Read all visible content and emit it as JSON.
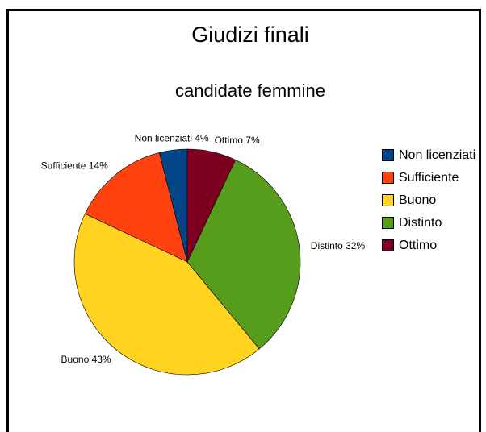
{
  "chart_data": {
    "type": "pie",
    "title": "Giudizi finali",
    "subtitle": "candidate femmine",
    "categories": [
      "Non licenziati",
      "Sufficiente",
      "Buono",
      "Distinto",
      "Ottimo"
    ],
    "values": [
      4,
      14,
      43,
      32,
      7
    ],
    "value_labels": [
      "Non licenziati 4%",
      "Sufficiente 14%",
      "Buono 43%",
      "Distinto 32%",
      "Ottimo 7%"
    ],
    "colors": [
      "#004586",
      "#ff420e",
      "#ffd320",
      "#579d1c",
      "#7e0021"
    ],
    "legend": "right"
  }
}
